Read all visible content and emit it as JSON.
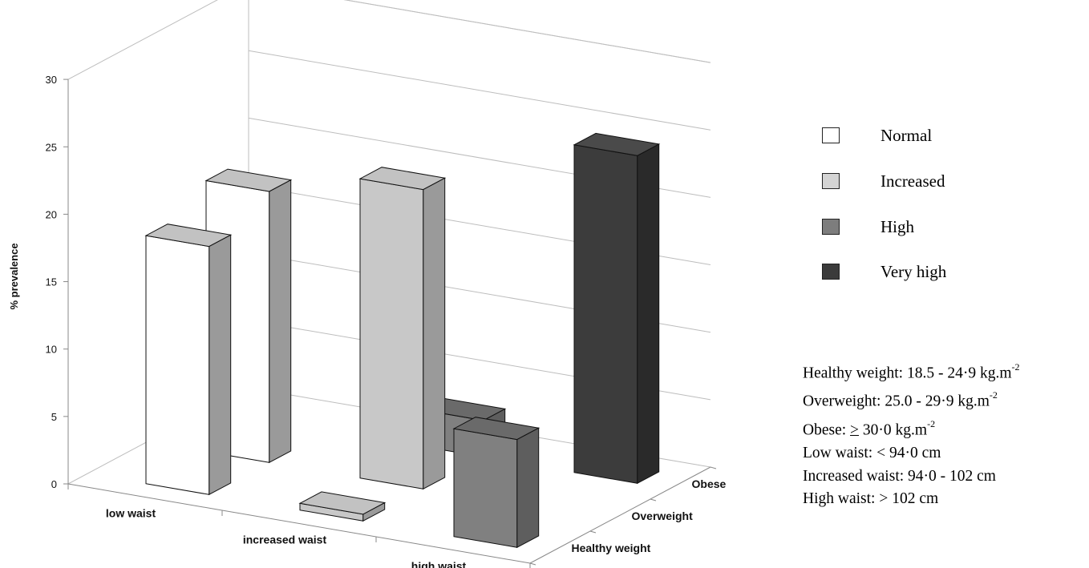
{
  "chart_data": {
    "type": "bar",
    "subtype": "3d-column",
    "ylabel": "% prevalence",
    "ylim": [
      0,
      30
    ],
    "yticks": [
      0,
      5,
      10,
      15,
      20,
      25,
      30
    ],
    "grid": true,
    "categories": [
      "low waist",
      "increased waist",
      "high waist"
    ],
    "depth_categories": [
      "Healthy weight",
      "Overweight",
      "Obese"
    ],
    "legend_position": "right",
    "risk_levels": [
      {
        "name": "Normal",
        "color": "#ffffff"
      },
      {
        "name": "Increased",
        "color": "#c8c8c8"
      },
      {
        "name": "High",
        "color": "#808080"
      },
      {
        "name": "Very high",
        "color": "#3c3c3c"
      }
    ],
    "bars": [
      {
        "category": "low waist",
        "depth": "Healthy weight",
        "value": 18.4,
        "risk": "Normal"
      },
      {
        "category": "low waist",
        "depth": "Overweight",
        "value": 20.1,
        "risk": "Normal"
      },
      {
        "category": "increased waist",
        "depth": "Healthy weight",
        "value": 0.5,
        "risk": "Increased"
      },
      {
        "category": "increased waist",
        "depth": "Overweight",
        "value": 22.2,
        "risk": "Increased"
      },
      {
        "category": "increased waist",
        "depth": "Obese",
        "value": 2.7,
        "risk": "High"
      },
      {
        "category": "high waist",
        "depth": "Healthy weight",
        "value": 8.0,
        "risk": "High"
      },
      {
        "category": "high waist",
        "depth": "Obese",
        "value": 24.3,
        "risk": "Very high"
      }
    ]
  },
  "legend": {
    "items": [
      {
        "label": "Normal",
        "color": "#ffffff"
      },
      {
        "label": "Increased",
        "color": "#d4d4d4"
      },
      {
        "label": "High",
        "color": "#7d7d7d"
      },
      {
        "label": "Very high",
        "color": "#3b3b3b"
      }
    ]
  },
  "notes": {
    "healthy_text": "Healthy weight: 18.5 - 24·9 kg.m",
    "healthy_sup": "-2",
    "overweight_text": "Overweight: 25.0 - 29·9 kg.m",
    "overweight_sup": "-2",
    "obese_prefix": "Obese: ",
    "obese_symbol": ">",
    "obese_text": " 30·0 kg.m",
    "obese_sup": "-2",
    "low_waist": "Low waist: < 94·0 cm",
    "increased_waist": "Increased waist: 94·0 - 102 cm",
    "high_waist": "High waist: > 102 cm"
  }
}
